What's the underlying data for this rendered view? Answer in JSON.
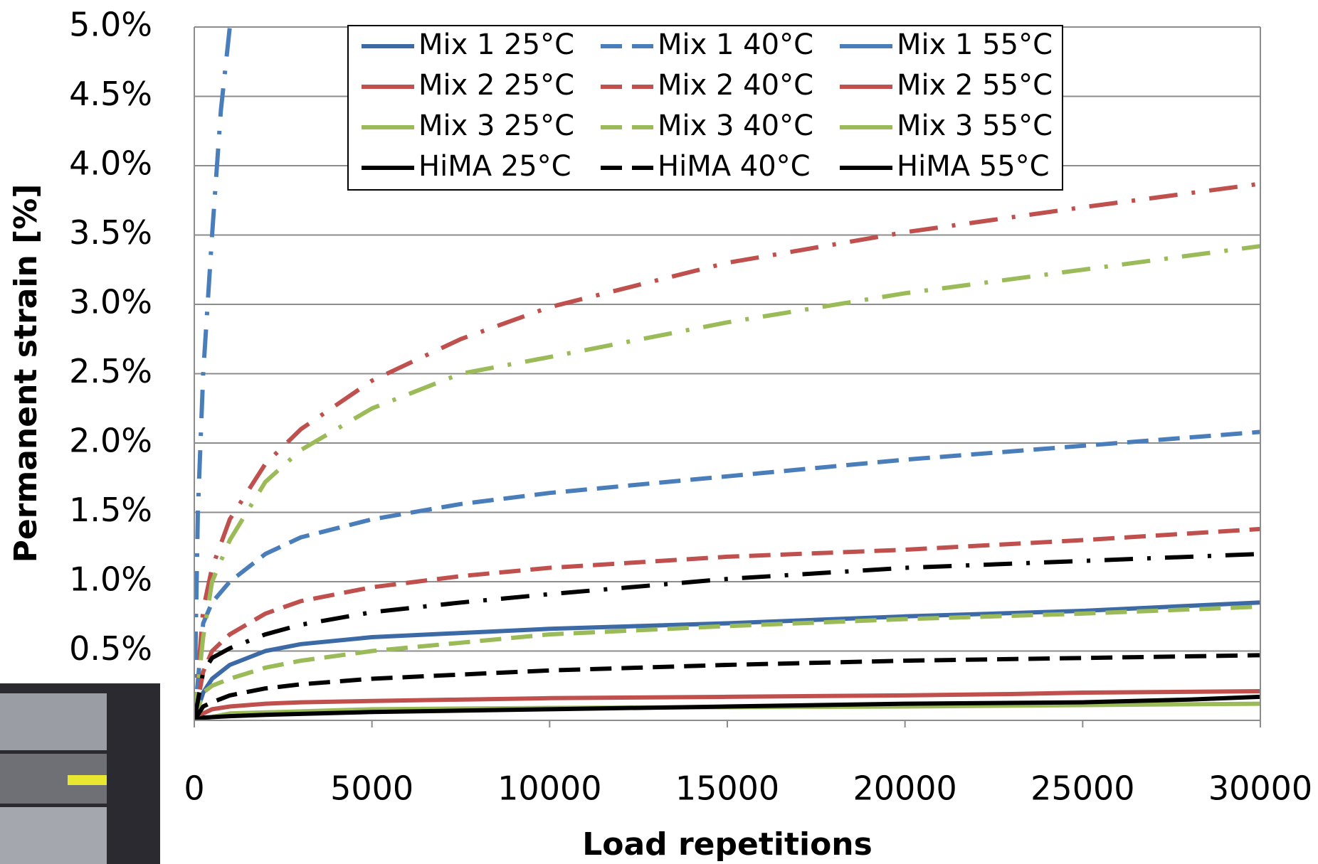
{
  "chart_data": {
    "type": "line",
    "x_label": "Load repetitions",
    "y_label": "Permanent strain [%]",
    "xlim": [
      0,
      30000
    ],
    "xticks": [
      0,
      5000,
      10000,
      15000,
      20000,
      25000,
      30000
    ],
    "ylim": [
      0,
      5
    ],
    "yticks": [
      {
        "value": 0.5,
        "label": "0.5%"
      },
      {
        "value": 1,
        "label": "1.0%"
      },
      {
        "value": 1.5,
        "label": "1.5%"
      },
      {
        "value": 2,
        "label": "2.0%"
      },
      {
        "value": 2.5,
        "label": "2.5%"
      },
      {
        "value": 3,
        "label": "3.0%"
      },
      {
        "value": 3.5,
        "label": "3.5%"
      },
      {
        "value": 4,
        "label": "4.0%"
      },
      {
        "value": 4.5,
        "label": "4.5%"
      },
      {
        "value": 5,
        "label": "5.0%"
      }
    ],
    "grid": true,
    "legend": "top",
    "series": [
      {
        "name": "Mix 1 25°C",
        "color": "#3c6aa6",
        "dash": "solid",
        "x": [
          0,
          250,
          500,
          1000,
          2000,
          3000,
          5000,
          7500,
          10000,
          15000,
          20000,
          25000,
          30000
        ],
        "values": [
          0,
          0.2,
          0.3,
          0.4,
          0.5,
          0.55,
          0.6,
          0.63,
          0.66,
          0.7,
          0.75,
          0.79,
          0.85
        ]
      },
      {
        "name": "Mix 1 40°C",
        "color": "#4a7ebb",
        "dash": "dash",
        "x": [
          0,
          250,
          500,
          1000,
          2000,
          3000,
          5000,
          7500,
          10000,
          15000,
          20000,
          25000,
          30000
        ],
        "values": [
          0,
          0.7,
          0.85,
          1.0,
          1.2,
          1.32,
          1.45,
          1.56,
          1.64,
          1.76,
          1.88,
          1.98,
          2.08
        ]
      },
      {
        "name": "Mix 1 55°C",
        "color": "#4a7ebb",
        "dash": "dashdot",
        "x": [
          0,
          100,
          250,
          500,
          750,
          1000
        ],
        "values": [
          0,
          1.5,
          2.5,
          3.5,
          4.4,
          5.0
        ]
      },
      {
        "name": "Mix 2 25°C",
        "color": "#c0504d",
        "dash": "solid",
        "x": [
          0,
          250,
          500,
          1000,
          2000,
          3000,
          5000,
          10000,
          15000,
          20000,
          23000,
          25000,
          30000
        ],
        "values": [
          0,
          0.05,
          0.08,
          0.1,
          0.12,
          0.13,
          0.14,
          0.16,
          0.17,
          0.18,
          0.19,
          0.2,
          0.21
        ]
      },
      {
        "name": "Mix 2 40°C",
        "color": "#c0504d",
        "dash": "dash",
        "x": [
          0,
          250,
          500,
          1000,
          2000,
          3000,
          5000,
          7500,
          10000,
          15000,
          20000,
          25000,
          30000
        ],
        "values": [
          0,
          0.35,
          0.5,
          0.62,
          0.77,
          0.86,
          0.96,
          1.04,
          1.1,
          1.18,
          1.23,
          1.3,
          1.38
        ]
      },
      {
        "name": "Mix 2 55°C",
        "color": "#c0504d",
        "dash": "dashdot",
        "x": [
          0,
          250,
          500,
          1000,
          2000,
          3000,
          5000,
          7500,
          10000,
          15000,
          20000,
          25000,
          30000
        ],
        "values": [
          0,
          0.8,
          1.1,
          1.45,
          1.85,
          2.1,
          2.45,
          2.75,
          2.98,
          3.3,
          3.52,
          3.7,
          3.87
        ]
      },
      {
        "name": "Mix 3 25°C",
        "color": "#9bbb59",
        "dash": "solid",
        "x": [
          0,
          1000,
          5000,
          10000,
          20000,
          30000
        ],
        "values": [
          0,
          0.05,
          0.08,
          0.09,
          0.1,
          0.12
        ]
      },
      {
        "name": "Mix 3 40°C",
        "color": "#9bbb59",
        "dash": "dash",
        "x": [
          0,
          250,
          500,
          1000,
          2000,
          3000,
          5000,
          7500,
          10000,
          15000,
          20000,
          25000,
          30000
        ],
        "values": [
          0,
          0.2,
          0.25,
          0.3,
          0.38,
          0.43,
          0.5,
          0.56,
          0.62,
          0.68,
          0.73,
          0.77,
          0.82
        ]
      },
      {
        "name": "Mix 3 55°C",
        "color": "#9bbb59",
        "dash": "dashdot",
        "x": [
          0,
          250,
          500,
          1000,
          2000,
          3000,
          5000,
          7500,
          10000,
          15000,
          20000,
          25000,
          30000
        ],
        "values": [
          0,
          0.6,
          1.0,
          1.3,
          1.72,
          1.95,
          2.25,
          2.5,
          2.62,
          2.87,
          3.08,
          3.25,
          3.42
        ]
      },
      {
        "name": "HiMA 25°C",
        "color": "#000000",
        "dash": "solid",
        "x": [
          0,
          250,
          1000,
          2000,
          5000,
          10000,
          15000,
          20000,
          25000,
          28000,
          30000
        ],
        "values": [
          0,
          0.02,
          0.03,
          0.04,
          0.06,
          0.08,
          0.1,
          0.12,
          0.13,
          0.15,
          0.17
        ]
      },
      {
        "name": "HiMA 40°C",
        "color": "#000000",
        "dash": "dash",
        "x": [
          0,
          250,
          500,
          1000,
          2000,
          3000,
          5000,
          7500,
          10000,
          15000,
          20000,
          25000,
          30000
        ],
        "values": [
          0,
          0.1,
          0.13,
          0.18,
          0.23,
          0.26,
          0.3,
          0.33,
          0.36,
          0.4,
          0.43,
          0.45,
          0.47
        ]
      },
      {
        "name": "HiMA 55°C",
        "color": "#000000",
        "dash": "dashdot",
        "x": [
          0,
          250,
          500,
          1000,
          2000,
          3000,
          5000,
          7500,
          10000,
          15000,
          20000,
          25000,
          30000
        ],
        "values": [
          0,
          0.35,
          0.45,
          0.52,
          0.62,
          0.69,
          0.78,
          0.85,
          0.91,
          1.02,
          1.1,
          1.15,
          1.2
        ]
      }
    ]
  }
}
